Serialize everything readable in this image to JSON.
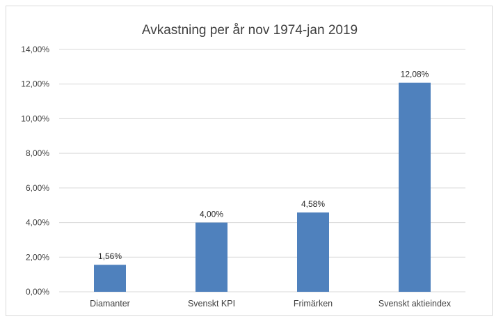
{
  "chart_data": {
    "type": "bar",
    "title": "Avkastning per år nov 1974-jan 2019",
    "xlabel": "",
    "ylabel": "",
    "categories": [
      "Diamanter",
      "Svenskt KPI",
      "Frimärken",
      "Svenskt aktieindex"
    ],
    "values": [
      1.56,
      4.0,
      4.58,
      12.08
    ],
    "value_labels": [
      "1,56%",
      "4,00%",
      "4,58%",
      "12,08%"
    ],
    "ylim": [
      0,
      14
    ],
    "yticks": [
      0,
      2,
      4,
      6,
      8,
      10,
      12,
      14
    ],
    "ytick_labels": [
      "0,00%",
      "2,00%",
      "4,00%",
      "6,00%",
      "8,00%",
      "10,00%",
      "12,00%",
      "14,00%"
    ],
    "grid": true,
    "legend": "none",
    "colors": {
      "bar": "#4f81bd",
      "grid": "#d9d9d9",
      "text": "#404040"
    }
  }
}
